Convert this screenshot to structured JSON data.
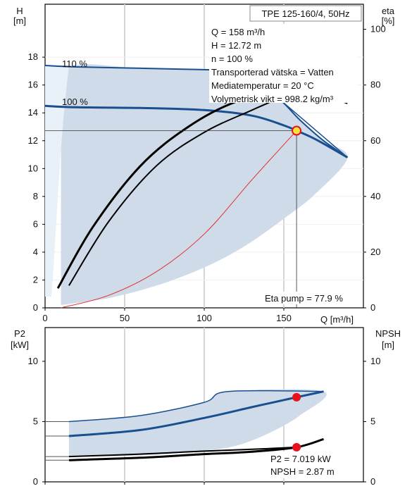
{
  "colors": {
    "envelope": "#cfdbe8",
    "envelope_light": "#e8f0f8",
    "curve_blue": "#1a4f8f",
    "curve_black": "#000000",
    "system_curve": "#e03030",
    "marker_red": "#e8101a",
    "marker_yellow": "#f5e43a",
    "grid": "#d6d6d6"
  },
  "top": {
    "h_label": "H",
    "h_unit": "[m]",
    "eta_label": "eta",
    "eta_unit": "[%]",
    "x_label": "Q [m³/h]",
    "title_box": "TPE 125-160/4, 50Hz",
    "info_lines": [
      "Q = 158 m³/h",
      "H = 12.72 m",
      "n = 100 %",
      "Transporterad vätska = Vatten",
      "Mediatemperatur = 20 °C",
      "Volymetrisk vikt = 998.2 kg/m³"
    ],
    "curve_label_110": "110 %",
    "curve_label_100": "100 %",
    "eta_callout": "Eta pump = 77.9 %"
  },
  "bottom": {
    "p2_label": "P2",
    "p2_unit": "[kW]",
    "npsh_label": "NPSH",
    "npsh_unit": "[m]",
    "info_lines": [
      "P2 = 7.019 kW",
      "NPSH = 2.87 m"
    ]
  },
  "chart_data": [
    {
      "type": "line",
      "name_key": "head_and_efficiency",
      "x_ticks": [
        "0",
        "50",
        "100",
        "150"
      ],
      "xlim": [
        0,
        200
      ],
      "ylim_left": [
        0,
        20
      ],
      "y_ticks_left": [
        "0",
        "2",
        "4",
        "6",
        "8",
        "10",
        "12",
        "14",
        "16",
        "18"
      ],
      "ylim_right": [
        0,
        100
      ],
      "y_ticks_right": [
        "0",
        "20",
        "40",
        "60",
        "80",
        "100"
      ],
      "series": [
        {
          "name": "110 %",
          "axis": "left",
          "x": [
            0,
            20,
            60,
            100,
            120,
            145,
            160,
            175,
            190
          ],
          "y": [
            17.4,
            17.3,
            17.2,
            17.1,
            17.0,
            15.2,
            13.5,
            12.0,
            10.8
          ]
        },
        {
          "name": "100 %",
          "axis": "left",
          "x": [
            0,
            20,
            60,
            100,
            130,
            150,
            158,
            170,
            190
          ],
          "y": [
            14.5,
            14.4,
            14.35,
            14.2,
            13.8,
            13.1,
            12.72,
            12.1,
            10.8
          ]
        },
        {
          "axis": "left",
          "x": [
            10,
            40,
            70,
            100,
            130,
            158
          ],
          "y": [
            0,
            0.9,
            2.6,
            5.3,
            9.2,
            12.72
          ]
        },
        {
          "axis": "right",
          "x": [
            8,
            30,
            60,
            90,
            120,
            150,
            158,
            170,
            190
          ],
          "y": [
            7,
            29,
            51,
            65,
            74,
            77.7,
            77.9,
            77.5,
            73.5
          ]
        },
        {
          "axis": "right",
          "x": [
            15,
            40,
            70,
            100,
            130,
            158
          ],
          "y": [
            8,
            31,
            51,
            63,
            71,
            77.9
          ]
        }
      ],
      "operating_point": {
        "x": 158,
        "head": 12.72,
        "eta": 77.9
      }
    },
    {
      "type": "line",
      "name_key": "power_and_npsh",
      "x_ticks": [
        "0",
        "50",
        "100",
        "150"
      ],
      "xlim": [
        0,
        200
      ],
      "ylim_left": [
        0,
        12
      ],
      "y_ticks_left": [
        "0",
        "5",
        "10"
      ],
      "ylim_right": [
        0,
        12
      ],
      "y_ticks_right": [
        "0",
        "5",
        "10"
      ],
      "series": [
        {
          "axis": "left",
          "x": [
            15,
            60,
            100,
            130,
            158,
            175
          ],
          "y": [
            3.8,
            4.3,
            5.3,
            6.2,
            7.019,
            7.5
          ]
        },
        {
          "axis": "left",
          "x": [
            15,
            60,
            100,
            115,
            175
          ],
          "y": [
            5.0,
            5.5,
            6.6,
            7.5,
            7.5
          ]
        },
        {
          "axis": "right",
          "x": [
            15,
            60,
            100,
            130,
            158,
            175
          ],
          "y": [
            1.8,
            2.0,
            2.3,
            2.5,
            2.87,
            3.55
          ]
        },
        {
          "axis": "right",
          "x": [
            15,
            60,
            100,
            130,
            158
          ],
          "y": [
            2.1,
            2.3,
            2.55,
            2.7,
            2.87
          ]
        }
      ],
      "operating_point": {
        "x": 158,
        "p2": 7.019,
        "npsh": 2.87
      }
    }
  ]
}
